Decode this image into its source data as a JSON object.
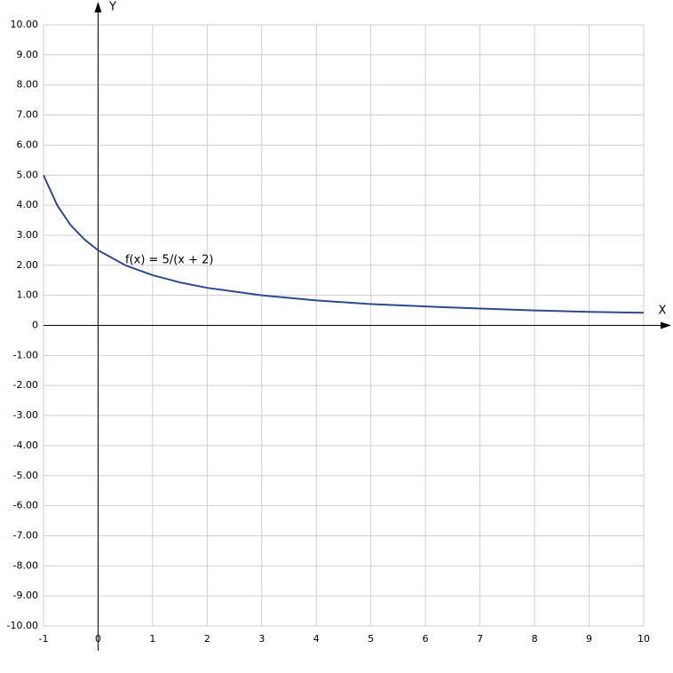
{
  "chart_data": {
    "type": "line",
    "x_label": "X",
    "y_label": "Y",
    "x": [
      -1,
      -0.75,
      -0.5,
      -0.25,
      0,
      0.5,
      1,
      1.5,
      2,
      3,
      4,
      5,
      6,
      7,
      8,
      9,
      10
    ],
    "series": [
      {
        "name": "f(x) = 5/(x + 2)",
        "color": "#2e4a8c",
        "values": [
          5,
          4,
          3.33,
          2.86,
          2.5,
          2,
          1.67,
          1.43,
          1.25,
          1,
          0.83,
          0.71,
          0.63,
          0.56,
          0.5,
          0.45,
          0.42
        ]
      }
    ],
    "xlim": [
      -1,
      10
    ],
    "xticks": [
      -1,
      0,
      1,
      2,
      3,
      4,
      5,
      6,
      7,
      8,
      9,
      10
    ],
    "ylim": [
      -10,
      10
    ],
    "yticks": [
      {
        "value": 10,
        "label": "10.00"
      },
      {
        "value": 9,
        "label": "9.00"
      },
      {
        "value": 8,
        "label": "8.00"
      },
      {
        "value": 7,
        "label": "7.00"
      },
      {
        "value": 6,
        "label": "6.00"
      },
      {
        "value": 5,
        "label": "5.00"
      },
      {
        "value": 4,
        "label": "4.00"
      },
      {
        "value": 3,
        "label": "3.00"
      },
      {
        "value": 2,
        "label": "2.00"
      },
      {
        "value": 1,
        "label": "1.00"
      },
      0,
      {
        "value": -1,
        "label": "-1.00"
      },
      {
        "value": -2,
        "label": "-2.00"
      },
      {
        "value": -3,
        "label": "-3.00"
      },
      {
        "value": -4,
        "label": "-4.00"
      },
      {
        "value": -5,
        "label": "-5.00"
      },
      {
        "value": -6,
        "label": "-6.00"
      },
      {
        "value": -7,
        "label": "-7.00"
      },
      {
        "value": -8,
        "label": "-8.00"
      },
      {
        "value": -9,
        "label": "-9.00"
      },
      {
        "value": -10,
        "label": "-10.00"
      }
    ],
    "grid": true
  }
}
